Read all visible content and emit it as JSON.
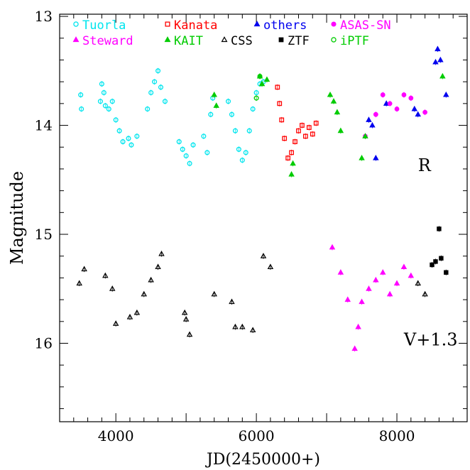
{
  "chart_data": {
    "type": "scatter",
    "xlabel": "JD(2450000+)",
    "ylabel": "Magnitude",
    "xlim": [
      3200,
      9000
    ],
    "ylim": [
      16.72,
      12.98
    ],
    "y_inverted": true,
    "x_ticks": [
      4000,
      6000,
      8000
    ],
    "y_ticks": [
      13,
      14,
      15,
      16
    ],
    "grid": false,
    "legend_placement": "top",
    "band_labels": [
      {
        "text": "R",
        "x": 8300,
        "y": 14.42
      },
      {
        "text": "V+1.3",
        "x": 8100,
        "y": 16.02
      }
    ],
    "series": [
      {
        "name": "Tuorla",
        "color": "#00e5ee",
        "marker": "circle-open",
        "data": [
          [
            3500,
            13.72
          ],
          [
            3510,
            13.85
          ],
          [
            3780,
            13.78
          ],
          [
            3800,
            13.62
          ],
          [
            3830,
            13.7
          ],
          [
            3850,
            13.82
          ],
          [
            3900,
            13.85
          ],
          [
            3950,
            13.78
          ],
          [
            4000,
            13.95
          ],
          [
            4050,
            14.05
          ],
          [
            4100,
            14.15
          ],
          [
            4180,
            14.12
          ],
          [
            4220,
            14.18
          ],
          [
            4300,
            14.1
          ],
          [
            4450,
            13.85
          ],
          [
            4500,
            13.7
          ],
          [
            4550,
            13.6
          ],
          [
            4600,
            13.5
          ],
          [
            4640,
            13.65
          ],
          [
            4700,
            13.78
          ],
          [
            4900,
            14.15
          ],
          [
            4950,
            14.22
          ],
          [
            5000,
            14.28
          ],
          [
            5050,
            14.35
          ],
          [
            5100,
            14.18
          ],
          [
            5250,
            14.1
          ],
          [
            5300,
            14.25
          ],
          [
            5350,
            13.9
          ],
          [
            5380,
            13.75
          ],
          [
            5600,
            13.78
          ],
          [
            5650,
            13.9
          ],
          [
            5700,
            14.05
          ],
          [
            5750,
            14.22
          ],
          [
            5800,
            14.32
          ],
          [
            5850,
            14.25
          ],
          [
            5900,
            14.05
          ],
          [
            5950,
            13.85
          ],
          [
            6000,
            13.7
          ],
          [
            6050,
            13.62
          ],
          [
            6100,
            13.6
          ]
        ]
      },
      {
        "name": "Kanata",
        "color": "#ff0000",
        "marker": "square-open",
        "data": [
          [
            6300,
            13.65
          ],
          [
            6330,
            13.8
          ],
          [
            6360,
            13.95
          ],
          [
            6400,
            14.12
          ],
          [
            6450,
            14.3
          ],
          [
            6500,
            14.25
          ],
          [
            6550,
            14.15
          ],
          [
            6600,
            14.05
          ],
          [
            6650,
            14.0
          ],
          [
            6700,
            14.1
          ],
          [
            6750,
            14.02
          ],
          [
            6800,
            14.08
          ],
          [
            6850,
            13.98
          ]
        ]
      },
      {
        "name": "others",
        "color": "#0000ee",
        "marker": "triangle-filled",
        "data": [
          [
            7600,
            13.95
          ],
          [
            7650,
            14.0
          ],
          [
            7700,
            14.3
          ],
          [
            7850,
            13.8
          ],
          [
            8250,
            13.85
          ],
          [
            8300,
            13.9
          ],
          [
            8550,
            13.42
          ],
          [
            8580,
            13.3
          ],
          [
            8620,
            13.4
          ],
          [
            8700,
            13.72
          ]
        ]
      },
      {
        "name": "ASAS-SN",
        "color": "#ff00ff",
        "marker": "circle-filled",
        "data": [
          [
            7550,
            14.1
          ],
          [
            7700,
            13.9
          ],
          [
            7800,
            13.72
          ],
          [
            7900,
            13.8
          ],
          [
            8000,
            13.85
          ],
          [
            8100,
            13.72
          ],
          [
            8200,
            13.75
          ],
          [
            8400,
            13.88
          ]
        ]
      },
      {
        "name": "Steward",
        "color": "#ff00ff",
        "marker": "triangle-filled",
        "data": [
          [
            7080,
            15.12
          ],
          [
            7200,
            15.35
          ],
          [
            7300,
            15.6
          ],
          [
            7400,
            16.05
          ],
          [
            7450,
            15.85
          ],
          [
            7500,
            15.62
          ],
          [
            7600,
            15.5
          ],
          [
            7700,
            15.42
          ],
          [
            7800,
            15.35
          ],
          [
            7900,
            15.55
          ],
          [
            8000,
            15.45
          ],
          [
            8100,
            15.3
          ],
          [
            8200,
            15.38
          ]
        ]
      },
      {
        "name": "KAIT",
        "color": "#00cc00",
        "marker": "triangle-filled",
        "data": [
          [
            5400,
            13.72
          ],
          [
            5430,
            13.82
          ],
          [
            6050,
            13.55
          ],
          [
            6080,
            13.62
          ],
          [
            6150,
            13.58
          ],
          [
            6500,
            14.45
          ],
          [
            6520,
            14.35
          ],
          [
            7050,
            13.72
          ],
          [
            7100,
            13.78
          ],
          [
            7150,
            13.88
          ],
          [
            7200,
            14.05
          ],
          [
            7500,
            14.3
          ],
          [
            7550,
            14.1
          ],
          [
            8650,
            13.55
          ]
        ]
      },
      {
        "name": "CSS",
        "color": "#000000",
        "marker": "triangle-open",
        "data": [
          [
            3480,
            15.45
          ],
          [
            3550,
            15.32
          ],
          [
            3850,
            15.38
          ],
          [
            3950,
            15.5
          ],
          [
            4000,
            15.82
          ],
          [
            4200,
            15.76
          ],
          [
            4300,
            15.72
          ],
          [
            4400,
            15.55
          ],
          [
            4500,
            15.42
          ],
          [
            4600,
            15.3
          ],
          [
            4650,
            15.18
          ],
          [
            4980,
            15.72
          ],
          [
            5000,
            15.78
          ],
          [
            5050,
            15.92
          ],
          [
            5400,
            15.55
          ],
          [
            5650,
            15.62
          ],
          [
            5700,
            15.85
          ],
          [
            5800,
            15.85
          ],
          [
            5950,
            15.88
          ],
          [
            6100,
            15.2
          ],
          [
            6200,
            15.3
          ],
          [
            8300,
            15.45
          ],
          [
            8400,
            15.55
          ]
        ]
      },
      {
        "name": "ZTF",
        "color": "#000000",
        "marker": "square-filled",
        "data": [
          [
            8500,
            15.28
          ],
          [
            8550,
            15.25
          ],
          [
            8600,
            14.95
          ],
          [
            8630,
            15.22
          ],
          [
            8700,
            15.35
          ]
        ]
      },
      {
        "name": "iPTF",
        "color": "#00cc00",
        "marker": "circle-open",
        "data": [
          [
            6000,
            13.75
          ],
          [
            6050,
            13.55
          ]
        ]
      }
    ]
  }
}
